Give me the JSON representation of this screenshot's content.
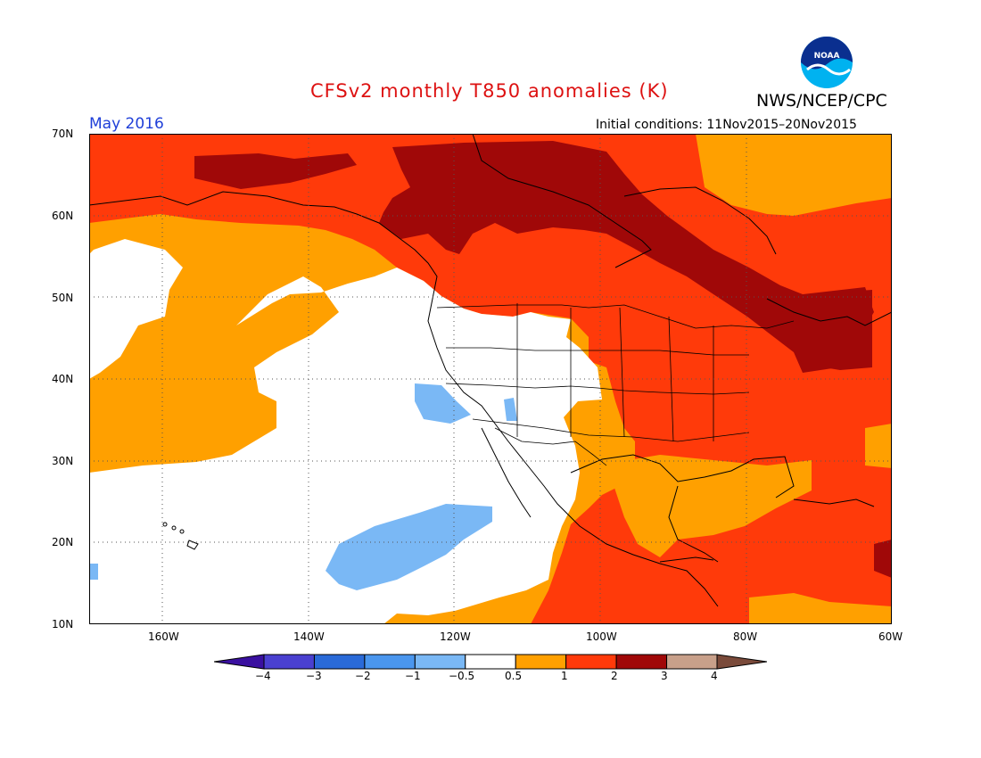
{
  "header": {
    "title": "CFSv2 monthly T850 anomalies (K)",
    "agency": "NWS/NCEP/CPC",
    "month": "May 2016",
    "initial_conditions": "Initial conditions: 11Nov2015–20Nov2015",
    "logo_text": "NOAA"
  },
  "axes": {
    "lat_labels": [
      "70N",
      "60N",
      "50N",
      "40N",
      "30N",
      "20N",
      "10N"
    ],
    "lon_labels": [
      "160W",
      "140W",
      "120W",
      "100W",
      "80W",
      "60W"
    ]
  },
  "colorbar": {
    "labels": [
      "−4",
      "−3",
      "−2",
      "−1",
      "−0.5",
      "0.5",
      "1",
      "2",
      "3",
      "4"
    ],
    "colors": [
      "#3a10a0",
      "#4a40d0",
      "#2a6ad8",
      "#4a96ee",
      "#7ab8f5",
      "#ffffff",
      "#ffa000",
      "#ff3a0a",
      "#a00808",
      "#c8a08a",
      "#7a4a3a"
    ]
  },
  "map_data": {
    "type": "map",
    "variable": "T850 anomaly",
    "units": "K",
    "lon_range": [
      "170W",
      "60W"
    ],
    "lat_range": [
      "10N",
      "70N"
    ],
    "regions": [
      {
        "anomaly_bin": "1 to 2",
        "color": "#ff3a0a",
        "note": "background across northern Pacific, Alaska, Canada, eastern US, Gulf, Caribbean"
      },
      {
        "anomaly_bin": "2 to 3",
        "color": "#a00808",
        "note": "northern Alaska, northern Canada band, Great Lakes and New England"
      },
      {
        "anomaly_bin": "0.5 to 1",
        "color": "#ffa000",
        "note": "subtropical and eastern Pacific, Gulf of Alaska, central Plains"
      },
      {
        "anomaly_bin": "-0.5 to 0.5",
        "color": "#ffffff",
        "note": "eastern Pacific, western US, Baja California"
      },
      {
        "anomaly_bin": "-1 to -0.5",
        "color": "#7ab8f5",
        "note": "small patches off California and SW of Baja"
      }
    ]
  }
}
